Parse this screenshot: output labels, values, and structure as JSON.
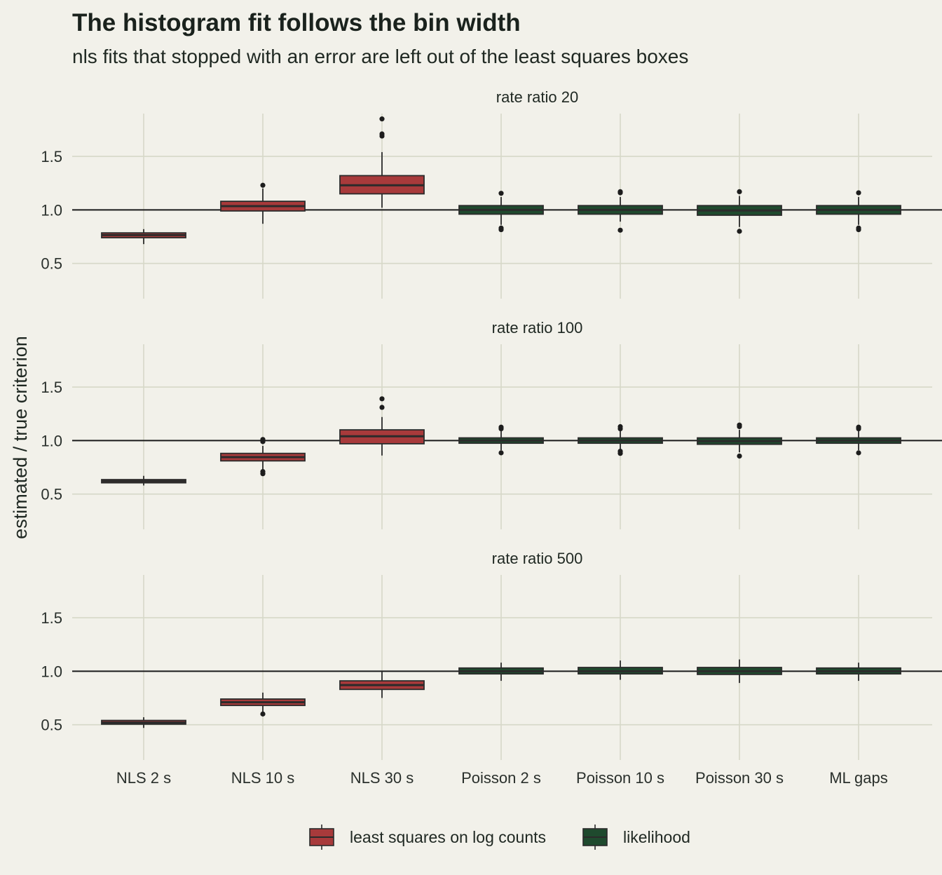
{
  "title": "The histogram fit follows the bin width",
  "subtitle": "nls fits that stopped with an error are left out of the least squares boxes",
  "colors": {
    "background": "#f2f1ea",
    "grid": "#d6d8c8",
    "least_squares": "#a83a3b",
    "likelihood": "#1f4a2e",
    "outline": "#2b2b2b"
  },
  "chart_data": {
    "type": "box",
    "ylabel": "estimated / true criterion",
    "xlabel": "",
    "categories": [
      "NLS 2 s",
      "NLS 10 s",
      "NLS 30 s",
      "Poisson 2 s",
      "Poisson 10 s",
      "Poisson 30 s",
      "ML gaps"
    ],
    "groups": [
      "least squares on log counts",
      "least squares on log counts",
      "least squares on log counts",
      "likelihood",
      "likelihood",
      "likelihood",
      "likelihood"
    ],
    "legend": [
      "least squares on log counts",
      "likelihood"
    ],
    "legend_position": "bottom",
    "yticks": [
      0.5,
      1.0,
      1.5
    ],
    "ytick_labels": [
      "0.5",
      "1.0",
      "1.5"
    ],
    "ylim": [
      0.17,
      1.9
    ],
    "reference_line": 1.0,
    "grid": true,
    "panels": [
      {
        "label": "rate ratio 20",
        "boxes": [
          {
            "q1": 0.74,
            "median": 0.765,
            "q3": 0.785,
            "lo": 0.68,
            "hi": 0.82,
            "outliers": []
          },
          {
            "q1": 0.99,
            "median": 1.035,
            "q3": 1.08,
            "lo": 0.87,
            "hi": 1.2,
            "outliers": [
              1.23
            ]
          },
          {
            "q1": 1.15,
            "median": 1.23,
            "q3": 1.32,
            "lo": 1.02,
            "hi": 1.54,
            "outliers": [
              1.69,
              1.71,
              1.85
            ]
          },
          {
            "q1": 0.96,
            "median": 1.0,
            "q3": 1.04,
            "lo": 0.86,
            "hi": 1.12,
            "outliers": [
              0.815,
              0.83,
              1.155
            ]
          },
          {
            "q1": 0.96,
            "median": 1.0,
            "q3": 1.04,
            "lo": 0.89,
            "hi": 1.12,
            "outliers": [
              0.81,
              1.16,
              1.17
            ]
          },
          {
            "q1": 0.95,
            "median": 0.995,
            "q3": 1.04,
            "lo": 0.84,
            "hi": 1.13,
            "outliers": [
              0.8,
              1.17
            ]
          },
          {
            "q1": 0.96,
            "median": 1.0,
            "q3": 1.04,
            "lo": 0.86,
            "hi": 1.12,
            "outliers": [
              0.815,
              0.83,
              1.16
            ]
          }
        ]
      },
      {
        "label": "rate ratio 100",
        "boxes": [
          {
            "q1": 0.605,
            "median": 0.62,
            "q3": 0.635,
            "lo": 0.58,
            "hi": 0.67,
            "outliers": []
          },
          {
            "q1": 0.81,
            "median": 0.845,
            "q3": 0.88,
            "lo": 0.73,
            "hi": 0.95,
            "outliers": [
              0.69,
              0.71,
              0.99,
              1.01
            ]
          },
          {
            "q1": 0.97,
            "median": 1.04,
            "q3": 1.1,
            "lo": 0.86,
            "hi": 1.22,
            "outliers": [
              1.31,
              1.39
            ]
          },
          {
            "q1": 0.975,
            "median": 1.0,
            "q3": 1.025,
            "lo": 0.91,
            "hi": 1.09,
            "outliers": [
              0.885,
              1.11,
              1.125
            ]
          },
          {
            "q1": 0.975,
            "median": 1.0,
            "q3": 1.025,
            "lo": 0.92,
            "hi": 1.09,
            "outliers": [
              0.88,
              0.9,
              1.11,
              1.13
            ]
          },
          {
            "q1": 0.965,
            "median": 0.995,
            "q3": 1.025,
            "lo": 0.89,
            "hi": 1.1,
            "outliers": [
              0.855,
              1.13,
              1.145
            ]
          },
          {
            "q1": 0.975,
            "median": 1.0,
            "q3": 1.025,
            "lo": 0.91,
            "hi": 1.09,
            "outliers": [
              0.885,
              1.11,
              1.125
            ]
          }
        ]
      },
      {
        "label": "rate ratio 500",
        "boxes": [
          {
            "q1": 0.505,
            "median": 0.52,
            "q3": 0.54,
            "lo": 0.47,
            "hi": 0.57,
            "outliers": []
          },
          {
            "q1": 0.68,
            "median": 0.71,
            "q3": 0.74,
            "lo": 0.62,
            "hi": 0.8,
            "outliers": [
              0.6
            ]
          },
          {
            "q1": 0.83,
            "median": 0.87,
            "q3": 0.91,
            "lo": 0.75,
            "hi": 1.0,
            "outliers": []
          },
          {
            "q1": 0.975,
            "median": 1.0,
            "q3": 1.03,
            "lo": 0.91,
            "hi": 1.08,
            "outliers": []
          },
          {
            "q1": 0.975,
            "median": 1.0,
            "q3": 1.035,
            "lo": 0.92,
            "hi": 1.1,
            "outliers": []
          },
          {
            "q1": 0.97,
            "median": 1.0,
            "q3": 1.035,
            "lo": 0.89,
            "hi": 1.11,
            "outliers": []
          },
          {
            "q1": 0.975,
            "median": 1.0,
            "q3": 1.03,
            "lo": 0.91,
            "hi": 1.08,
            "outliers": []
          }
        ]
      }
    ]
  }
}
